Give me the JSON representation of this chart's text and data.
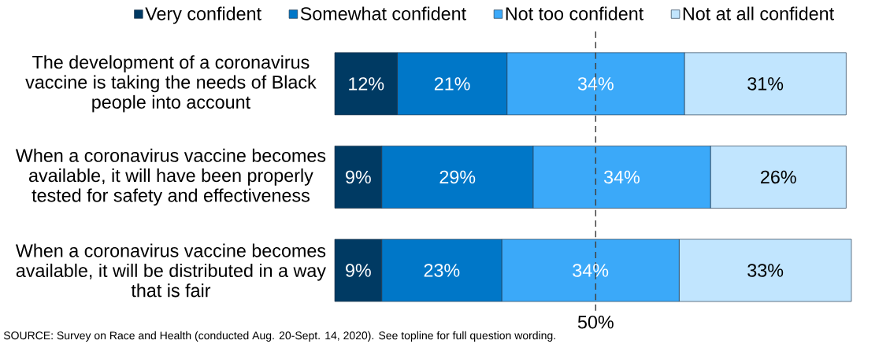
{
  "chart_data": {
    "type": "bar",
    "orientation": "horizontal",
    "stacked": true,
    "categories": [
      "The development of a coronavirus vaccine is taking the needs of Black people into account",
      "When a coronavirus vaccine becomes available, it will have been properly tested for safety and effectiveness",
      "When a coronavirus vaccine becomes available, it will be distributed in a way that is fair"
    ],
    "series": [
      {
        "name": "Very confident",
        "color": "#003a63",
        "values": [
          12,
          9,
          9
        ],
        "value_labels": [
          "12%",
          "9%",
          "9%"
        ]
      },
      {
        "name": "Somewhat confident",
        "color": "#0077c8",
        "values": [
          21,
          29,
          23
        ],
        "value_labels": [
          "21%",
          "29%",
          "23%"
        ]
      },
      {
        "name": "Not too confident",
        "color": "#3ba9f9",
        "values": [
          34,
          34,
          34
        ],
        "value_labels": [
          "34%",
          "34%",
          "34%"
        ]
      },
      {
        "name": "Not at all confident",
        "color": "#c1e5fe",
        "values": [
          31,
          26,
          33
        ],
        "value_labels": [
          "31%",
          "26%",
          "33%"
        ]
      }
    ],
    "tick_labels": "y",
    "legend": "top",
    "ref_lines": [
      {
        "axis": "x",
        "value": 50,
        "label": "50%",
        "color": "#404040",
        "line_style": "dashed"
      }
    ],
    "annotations": [
      "SOURCE: Survey on Race and Health (conducted Aug. 20-Sept. 14, 2020). See topline for full question wording."
    ]
  }
}
